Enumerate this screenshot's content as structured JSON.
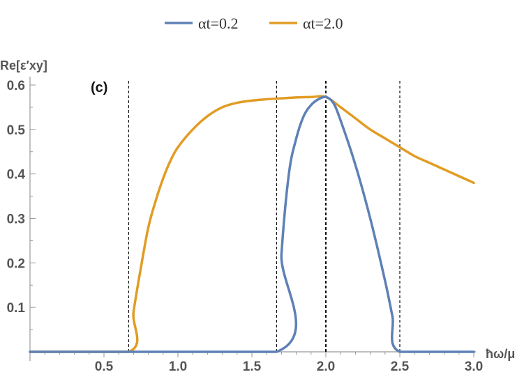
{
  "chart_data": {
    "type": "line",
    "panel_label": "(c)",
    "xlabel": "ħω/μ",
    "ylabel": "Re[ε′xy]",
    "xlim": [
      0,
      3.0
    ],
    "ylim": [
      0,
      0.6
    ],
    "x_ticks": [
      "0.5",
      "1.0",
      "1.5",
      "2.0",
      "2.5",
      "3.0"
    ],
    "y_ticks": [
      "0.1",
      "0.2",
      "0.3",
      "0.4",
      "0.5",
      "0.6"
    ],
    "vertical_dashed_lines": [
      0.667,
      1.667,
      2.0,
      2.5
    ],
    "legend": {
      "placement": "top-center"
    },
    "series": [
      {
        "name": "αt=0.2",
        "color": "#5e81b5",
        "points": [
          [
            0,
            0
          ],
          [
            1.667,
            0
          ],
          [
            1.7,
            0.22
          ],
          [
            1.75,
            0.4
          ],
          [
            1.8,
            0.48
          ],
          [
            1.85,
            0.53
          ],
          [
            1.9,
            0.555
          ],
          [
            1.95,
            0.568
          ],
          [
            2.0,
            0.573
          ],
          [
            2.05,
            0.56
          ],
          [
            2.1,
            0.52
          ],
          [
            2.2,
            0.42
          ],
          [
            2.3,
            0.3
          ],
          [
            2.4,
            0.16
          ],
          [
            2.45,
            0.08
          ],
          [
            2.5,
            0
          ],
          [
            3.0,
            0
          ]
        ]
      },
      {
        "name": "αt=2.0",
        "color": "#e19c24",
        "points": [
          [
            0,
            0
          ],
          [
            0.667,
            0
          ],
          [
            0.7,
            0.09
          ],
          [
            0.75,
            0.19
          ],
          [
            0.8,
            0.28
          ],
          [
            0.85,
            0.34
          ],
          [
            0.9,
            0.39
          ],
          [
            0.95,
            0.43
          ],
          [
            1.0,
            0.46
          ],
          [
            1.1,
            0.5
          ],
          [
            1.2,
            0.53
          ],
          [
            1.3,
            0.55
          ],
          [
            1.4,
            0.56
          ],
          [
            1.5,
            0.565
          ],
          [
            1.6,
            0.568
          ],
          [
            1.7,
            0.57
          ],
          [
            1.8,
            0.572
          ],
          [
            1.9,
            0.573
          ],
          [
            2.0,
            0.573
          ],
          [
            2.1,
            0.55
          ],
          [
            2.2,
            0.525
          ],
          [
            2.3,
            0.5
          ],
          [
            2.4,
            0.48
          ],
          [
            2.5,
            0.46
          ],
          [
            2.6,
            0.44
          ],
          [
            2.7,
            0.425
          ],
          [
            2.8,
            0.41
          ],
          [
            2.9,
            0.395
          ],
          [
            3.0,
            0.38
          ]
        ]
      }
    ]
  }
}
